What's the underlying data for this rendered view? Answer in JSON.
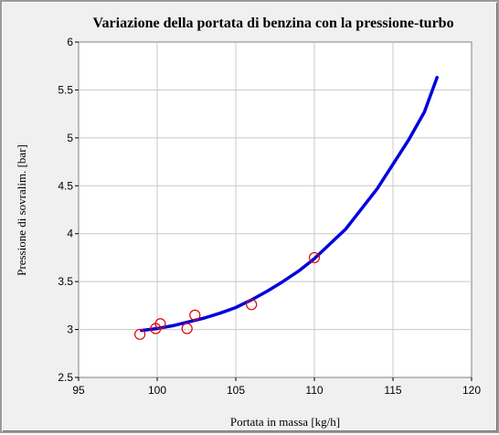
{
  "chart_data": {
    "type": "line",
    "title": "Variazione della portata di benzina con la pressione-turbo",
    "xlabel": "Portata in massa  [kg/h]",
    "ylabel": "Pressione di sovralim.  [bar]",
    "xlim": [
      95,
      120
    ],
    "ylim": [
      2.5,
      6
    ],
    "xticks": [
      "95",
      "100",
      "105",
      "110",
      "115",
      "120"
    ],
    "yticks": [
      "2.5",
      "3",
      "3.5",
      "4",
      "4.5",
      "5",
      "5.5",
      "6"
    ],
    "grid": true,
    "series": [
      {
        "kind": "line",
        "color": "#0000dd",
        "x": [
          99,
          100,
          101,
          102,
          103,
          104,
          105,
          106,
          107,
          108,
          109,
          110,
          112,
          114,
          116,
          117,
          117.8
        ],
        "y": [
          2.99,
          3.01,
          3.04,
          3.08,
          3.12,
          3.17,
          3.23,
          3.31,
          3.4,
          3.5,
          3.61,
          3.74,
          4.05,
          4.47,
          4.98,
          5.27,
          5.63
        ]
      },
      {
        "kind": "scatter",
        "marker": "circle",
        "color": "#e00000",
        "x": [
          98.9,
          99.9,
          100.2,
          101.9,
          102.4,
          106,
          110
        ],
        "y": [
          2.95,
          3.01,
          3.06,
          3.01,
          3.15,
          3.26,
          3.75
        ]
      }
    ]
  }
}
